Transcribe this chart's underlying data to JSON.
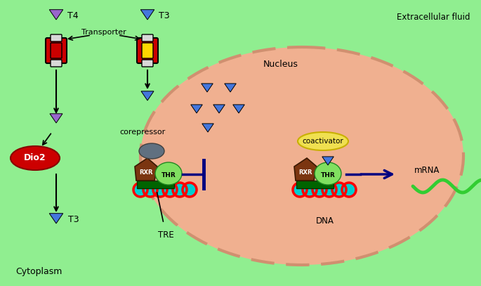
{
  "bg_outer": "#90EE90",
  "nucleus_color": "#f0b090",
  "cytoplasm_label": "Cytoplasm",
  "extracellular_label": "Extracellular fluid",
  "nucleus_label": "Nucleus",
  "t4_label": "T4",
  "t3_label": "T3",
  "transporter_label": "Transporter",
  "dio2_label": "Dio2",
  "t3_bottom_label": "T3",
  "corepressor_label": "corepressor",
  "coactivator_label": "coactivator",
  "rxr_label": "RXR",
  "thr_label": "THR",
  "tre_label": "TRE",
  "dna_label": "DNA",
  "mrna_label": "mRNA",
  "blue_arrow_color": "#000080",
  "triangle_purple": "#9966CC",
  "triangle_blue": "#4477DD",
  "transporter_red": "#CC0000",
  "transporter_yellow": "#FFD700",
  "dio2_red": "#CC0000",
  "rxr_brown": "#7B3510",
  "thr_brown": "#5B2808",
  "corepressor_gray": "#607080",
  "coactivator_yellow": "#F0E050",
  "dna_red": "#FF0000",
  "dna_teal": "#00CED1",
  "dna_bar_green": "#006400",
  "mrna_green": "#32CD32",
  "thr_green_light": "#80E060"
}
